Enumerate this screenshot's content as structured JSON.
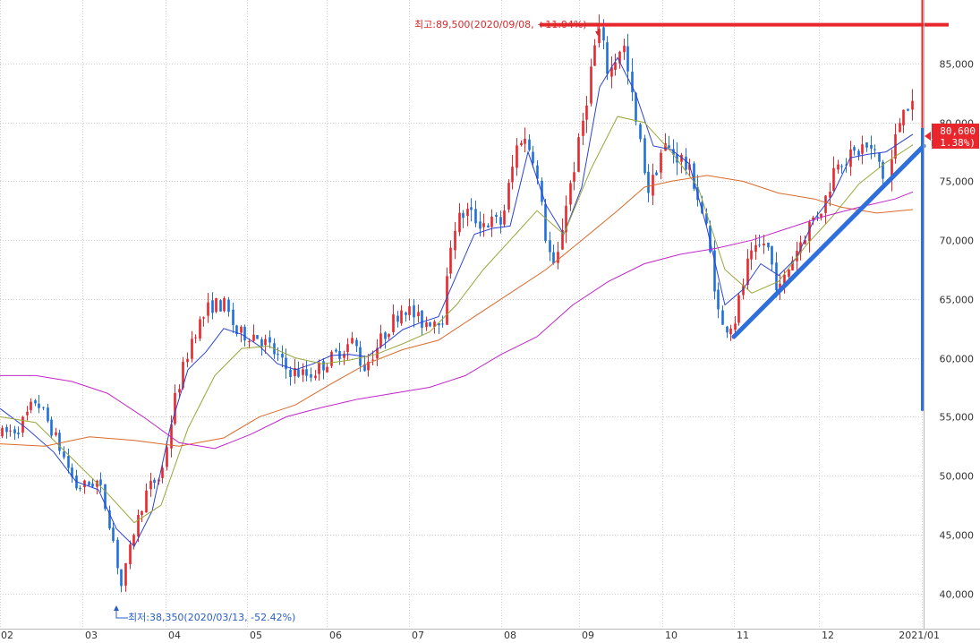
{
  "chart_data": {
    "type": "candlestick",
    "title": "",
    "xlabel": "",
    "ylabel": "",
    "ylim": [
      37000,
      90400
    ],
    "y_ticks": [
      40000,
      45000,
      50000,
      55000,
      60000,
      65000,
      70000,
      75000,
      80000,
      85000
    ],
    "y_tick_labels": [
      "40,000",
      "45,000",
      "50,000",
      "55,000",
      "60,000",
      "65,000",
      "70,000",
      "75,000",
      "80,000",
      "85,000"
    ],
    "x_month_labels": [
      "02",
      "03",
      "04",
      "05",
      "06",
      "07",
      "08",
      "09",
      "10",
      "11",
      "12",
      "2021/01"
    ],
    "grid": true,
    "last_price": {
      "value": 80600,
      "price_label": "80,600",
      "change_label": "( 1.38%)"
    },
    "high_annotation": {
      "value": 89500,
      "date": "2020/09/08",
      "label": "최고:89,500(2020/09/08, +11.04%)"
    },
    "low_annotation": {
      "value": 38350,
      "date": "2020/03/13",
      "label": "최저:38,350(2020/03/13, -52.42%)"
    },
    "resistance_line": {
      "value": 88300,
      "color": "#e8262b"
    },
    "trend_line": {
      "from": {
        "date": "2020/11/02",
        "value": 61800
      },
      "to": {
        "date": "2021/01/05",
        "value": 78000
      },
      "color": "#4343c8"
    },
    "colors": {
      "up": "#e8262b",
      "down": "#1f6fdc",
      "ma5": "#2a43d4",
      "ma20": "#9aa63a",
      "ma60": "#d96a2a",
      "ma120": "#c026c8",
      "cursor_red": "#e8262b",
      "cursor_blue": "#2f6fdc"
    },
    "series": [
      {
        "name": "",
        "kind": "ma5",
        "values": [
          [
            0,
            55700
          ],
          [
            30,
            54000
          ],
          [
            60,
            52000
          ],
          [
            85,
            49500
          ],
          [
            110,
            48800
          ],
          [
            130,
            45500
          ],
          [
            150,
            44000
          ],
          [
            170,
            47000
          ],
          [
            190,
            54000
          ],
          [
            210,
            59000
          ],
          [
            230,
            60500
          ],
          [
            250,
            62500
          ],
          [
            270,
            62000
          ],
          [
            290,
            61000
          ],
          [
            310,
            59500
          ],
          [
            330,
            59000
          ],
          [
            350,
            59500
          ],
          [
            370,
            60200
          ],
          [
            390,
            60300
          ],
          [
            410,
            60100
          ],
          [
            430,
            61200
          ],
          [
            450,
            62400
          ],
          [
            470,
            63000
          ],
          [
            490,
            63500
          ],
          [
            510,
            67000
          ],
          [
            530,
            70500
          ],
          [
            550,
            71000
          ],
          [
            570,
            71200
          ],
          [
            590,
            77500
          ],
          [
            610,
            73000
          ],
          [
            630,
            70500
          ],
          [
            650,
            74500
          ],
          [
            670,
            83000
          ],
          [
            690,
            85500
          ],
          [
            710,
            82500
          ],
          [
            730,
            78000
          ],
          [
            750,
            77700
          ],
          [
            770,
            76500
          ],
          [
            790,
            71000
          ],
          [
            810,
            64500
          ],
          [
            830,
            65800
          ],
          [
            850,
            68000
          ],
          [
            870,
            67000
          ],
          [
            890,
            68500
          ],
          [
            910,
            71800
          ],
          [
            930,
            73800
          ],
          [
            950,
            77000
          ],
          [
            970,
            77300
          ],
          [
            990,
            77500
          ],
          [
            1010,
            78500
          ],
          [
            1020,
            79000
          ]
        ]
      },
      {
        "name": "",
        "kind": "ma20",
        "values": [
          [
            0,
            55000
          ],
          [
            40,
            54500
          ],
          [
            80,
            51500
          ],
          [
            120,
            48500
          ],
          [
            150,
            46000
          ],
          [
            180,
            47500
          ],
          [
            210,
            54000
          ],
          [
            240,
            58500
          ],
          [
            270,
            60800
          ],
          [
            300,
            61000
          ],
          [
            330,
            60000
          ],
          [
            360,
            59500
          ],
          [
            390,
            59800
          ],
          [
            420,
            60300
          ],
          [
            450,
            61200
          ],
          [
            480,
            62200
          ],
          [
            510,
            64500
          ],
          [
            540,
            67500
          ],
          [
            570,
            70000
          ],
          [
            600,
            72500
          ],
          [
            630,
            70500
          ],
          [
            660,
            76000
          ],
          [
            690,
            80500
          ],
          [
            720,
            80000
          ],
          [
            750,
            77500
          ],
          [
            780,
            74500
          ],
          [
            810,
            67500
          ],
          [
            840,
            65500
          ],
          [
            870,
            66500
          ],
          [
            900,
            69500
          ],
          [
            930,
            72000
          ],
          [
            960,
            74800
          ],
          [
            990,
            76600
          ],
          [
            1020,
            78100
          ]
        ]
      },
      {
        "name": "",
        "kind": "ma60",
        "values": [
          [
            0,
            52700
          ],
          [
            50,
            52500
          ],
          [
            100,
            53300
          ],
          [
            150,
            53000
          ],
          [
            200,
            52500
          ],
          [
            250,
            53200
          ],
          [
            290,
            55000
          ],
          [
            330,
            56000
          ],
          [
            370,
            57800
          ],
          [
            410,
            59500
          ],
          [
            450,
            60700
          ],
          [
            490,
            61500
          ],
          [
            530,
            63500
          ],
          [
            570,
            65500
          ],
          [
            610,
            67500
          ],
          [
            650,
            70000
          ],
          [
            690,
            72500
          ],
          [
            720,
            74500
          ],
          [
            750,
            75000
          ],
          [
            790,
            75500
          ],
          [
            830,
            75000
          ],
          [
            870,
            74000
          ],
          [
            910,
            73500
          ],
          [
            940,
            72800
          ],
          [
            980,
            72300
          ],
          [
            1020,
            72600
          ]
        ]
      },
      {
        "name": "",
        "kind": "ma120",
        "values": [
          [
            0,
            58500
          ],
          [
            40,
            58500
          ],
          [
            80,
            58000
          ],
          [
            120,
            57000
          ],
          [
            160,
            55000
          ],
          [
            200,
            52800
          ],
          [
            240,
            52300
          ],
          [
            280,
            53500
          ],
          [
            320,
            55000
          ],
          [
            360,
            55800
          ],
          [
            400,
            56500
          ],
          [
            440,
            57000
          ],
          [
            480,
            57500
          ],
          [
            520,
            58500
          ],
          [
            560,
            60300
          ],
          [
            600,
            61800
          ],
          [
            640,
            64500
          ],
          [
            680,
            66500
          ],
          [
            720,
            68000
          ],
          [
            760,
            68800
          ],
          [
            800,
            69300
          ],
          [
            840,
            70000
          ],
          [
            880,
            71000
          ],
          [
            920,
            72000
          ],
          [
            960,
            72800
          ],
          [
            1000,
            73500
          ],
          [
            1020,
            74100
          ]
        ]
      }
    ]
  }
}
